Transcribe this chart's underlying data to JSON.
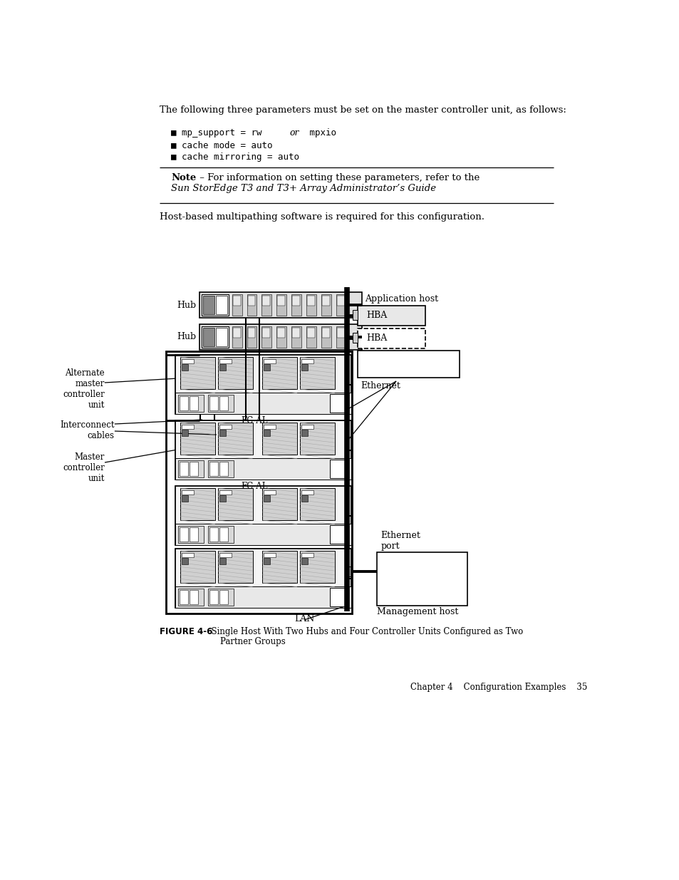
{
  "bg": "#ffffff",
  "para1": "The following three parameters must be set on the master controller unit, as follows:",
  "bullet1_mono": "mp_support = rw ",
  "bullet1_or": "or",
  "bullet1_mono2": " mpxio",
  "bullet2_mono": "cache mode = auto",
  "bullet3_mono": "cache mirroring = auto",
  "note_bold": "Note –",
  "note_rest": " For information on setting these parameters, refer to the ",
  "note_italic1": "Sun StorEdge T3 and",
  "note_italic2": "T3+ Array Administrator’s Guide",
  "host_text": "Host-based multipathing software is required for this configuration.",
  "label_hub1": "Hub",
  "label_hub2": "Hub",
  "label_app_host": "Application host",
  "label_ethernet": "Ethernet",
  "label_ethernet_port": "Ethernet\nport",
  "label_mgmt_host": "Management host",
  "label_lan": "LAN",
  "label_fcal1": "FC-AL",
  "label_fcal2": "FC-AL",
  "label_alt_master": "Alternate\nmaster\ncontroller\nunit",
  "label_interconnect": "Interconnect\ncables",
  "label_master": "Master\ncontroller\nunit",
  "fig_bold": "FIGURE 4-6",
  "fig_rest": "  Single Host With Two Hubs and Four Controller Units Configured as Two",
  "fig_rest2": "Partner Groups",
  "footer": "Chapter 4    Configuration Examples    35"
}
